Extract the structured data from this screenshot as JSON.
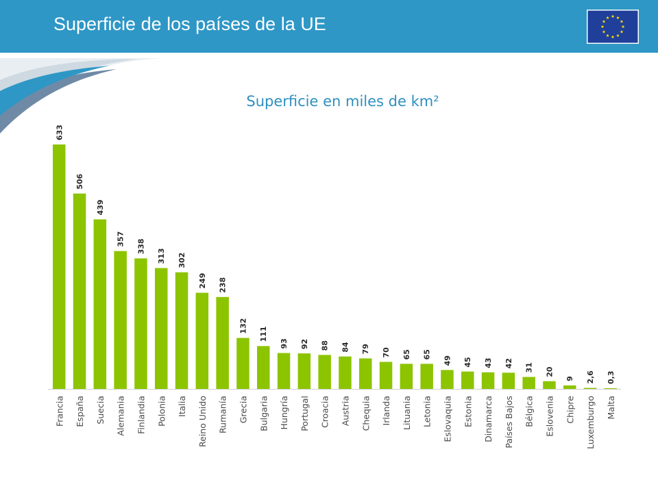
{
  "header": {
    "title": "Superficie de los países de la UE",
    "accent_color": "#2e97c6",
    "flag_icon": "eu-flag-icon"
  },
  "chart_data": {
    "type": "bar",
    "title": "Superficie en miles de km²",
    "categories": [
      "Francia",
      "España",
      "Suecia",
      "Alemania",
      "Finlandia",
      "Polonia",
      "Italia",
      "Reino Unido",
      "Rumanía",
      "Grecia",
      "Bulgaria",
      "Hungría",
      "Portugal",
      "Croacia",
      "Austria",
      "Chequia",
      "Irlanda",
      "Lituania",
      "Letonia",
      "Eslovaquia",
      "Estonia",
      "Dinamarca",
      "Países Bajos",
      "Bélgica",
      "Eslovenia",
      "Chipre",
      "Luxemburgo",
      "Malta"
    ],
    "values": [
      633,
      506,
      439,
      357,
      338,
      313,
      302,
      249,
      238,
      132,
      111,
      93,
      92,
      88,
      84,
      79,
      70,
      65,
      65,
      49,
      45,
      43,
      42,
      31,
      20,
      9,
      2.6,
      0.3
    ],
    "value_labels": [
      "633",
      "506",
      "439",
      "357",
      "338",
      "313",
      "302",
      "249",
      "238",
      "132",
      "111",
      "93",
      "92",
      "88",
      "84",
      "79",
      "70",
      "65",
      "65",
      "49",
      "45",
      "43",
      "42",
      "31",
      "20",
      "9",
      "2,6",
      "0,3"
    ],
    "bar_color": "#8cc400",
    "xlabel": "",
    "ylabel": "",
    "ylim": [
      0,
      633
    ],
    "grid": false,
    "legend": "none"
  }
}
